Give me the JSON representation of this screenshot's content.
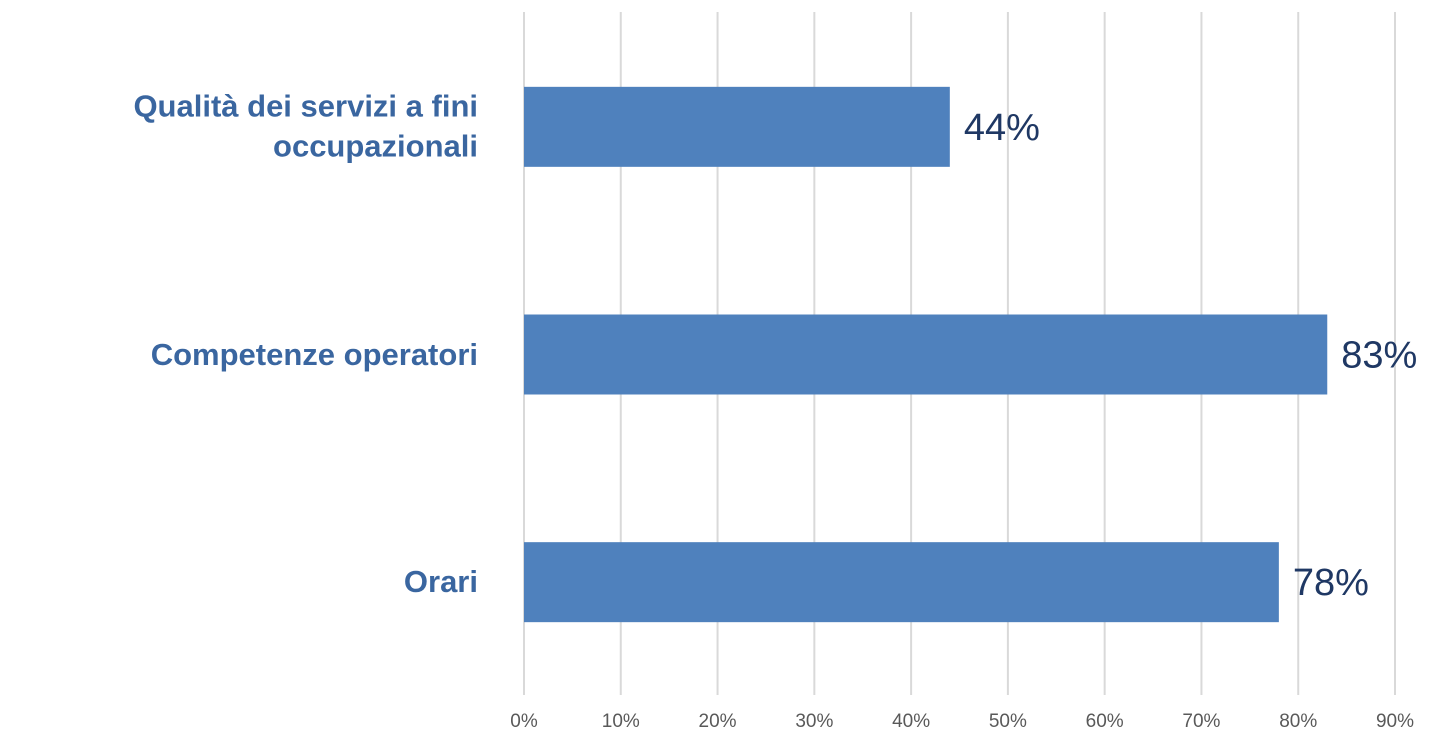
{
  "chart_data": {
    "type": "bar",
    "orientation": "horizontal",
    "categories": [
      "Qualità dei servizi a fini occupazionali",
      "Competenze operatori",
      "Orari"
    ],
    "values": [
      44,
      83,
      78
    ],
    "value_labels": [
      "44%",
      "83%",
      "78%"
    ],
    "color": "#4f81bd",
    "xlim": [
      0,
      90
    ],
    "xticks": [
      {
        "value": 0,
        "label": "0%"
      },
      {
        "value": 10,
        "label": "10%"
      },
      {
        "value": 20,
        "label": "20%"
      },
      {
        "value": 30,
        "label": "30%"
      },
      {
        "value": 40,
        "label": "40%"
      },
      {
        "value": 50,
        "label": "50%"
      },
      {
        "value": 60,
        "label": "60%"
      },
      {
        "value": 70,
        "label": "70%"
      },
      {
        "value": 80,
        "label": "80%"
      },
      {
        "value": 90,
        "label": "90%"
      }
    ],
    "grid": true
  }
}
